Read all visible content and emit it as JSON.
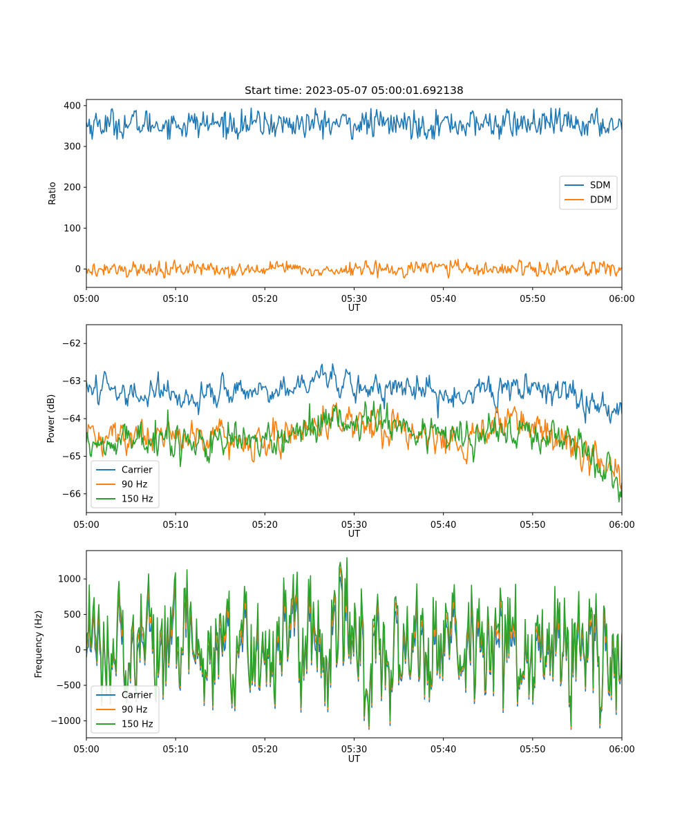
{
  "chart_data": [
    {
      "type": "line",
      "title": "Start time: 2023-05-07 05:00:01.692138",
      "xlabel": "UT",
      "ylabel": "Ratio",
      "xlim": [
        0,
        60
      ],
      "ylim": [
        -45,
        415
      ],
      "xticks": [
        0,
        10,
        20,
        30,
        40,
        50,
        60
      ],
      "xtick_labels": [
        "05:00",
        "05:10",
        "05:20",
        "05:30",
        "05:40",
        "05:50",
        "06:00"
      ],
      "yticks": [
        0,
        100,
        200,
        300,
        400
      ],
      "ytick_labels": [
        "0",
        "100",
        "200",
        "300",
        "400"
      ],
      "legend_position": "center-right",
      "series": [
        {
          "name": "SDM",
          "color": "#1f77b4",
          "mean": 355,
          "amplitude": 17,
          "min": 318,
          "max": 394
        },
        {
          "name": "DDM",
          "color": "#ff7f0e",
          "mean": 0,
          "amplitude": 9,
          "min": -22,
          "max": 27
        }
      ]
    },
    {
      "type": "line",
      "title": "",
      "xlabel": "UT",
      "ylabel": "Power (dB)",
      "xlim": [
        0,
        60
      ],
      "ylim": [
        -66.5,
        -61.5
      ],
      "xticks": [
        0,
        10,
        20,
        30,
        40,
        50,
        60
      ],
      "xtick_labels": [
        "05:00",
        "05:10",
        "05:20",
        "05:30",
        "05:40",
        "05:50",
        "06:00"
      ],
      "yticks": [
        -62,
        -63,
        -64,
        -65,
        -66
      ],
      "ytick_labels": [
        "−62",
        "−63",
        "−64",
        "−65",
        "−66"
      ],
      "legend_position": "lower-left",
      "series": [
        {
          "name": "Carrier",
          "color": "#1f77b4",
          "trend": [
            [
              0,
              -63.1
            ],
            [
              10,
              -63.4
            ],
            [
              20,
              -63.3
            ],
            [
              26,
              -62.9
            ],
            [
              30,
              -63.1
            ],
            [
              40,
              -63.3
            ],
            [
              48,
              -63.1
            ],
            [
              55,
              -63.4
            ],
            [
              60,
              -63.8
            ]
          ],
          "amplitude": 0.28
        },
        {
          "name": "90 Hz",
          "color": "#ff7f0e",
          "trend": [
            [
              0,
              -64.5
            ],
            [
              10,
              -64.4
            ],
            [
              20,
              -64.6
            ],
            [
              28,
              -64.0
            ],
            [
              35,
              -64.3
            ],
            [
              40,
              -64.6
            ],
            [
              48,
              -64.1
            ],
            [
              55,
              -64.6
            ],
            [
              60,
              -65.6
            ]
          ],
          "amplitude": 0.33
        },
        {
          "name": "150 Hz",
          "color": "#2ca02c",
          "trend": [
            [
              0,
              -64.6
            ],
            [
              10,
              -64.5
            ],
            [
              20,
              -64.7
            ],
            [
              28,
              -64.0
            ],
            [
              35,
              -64.2
            ],
            [
              40,
              -64.5
            ],
            [
              48,
              -64.3
            ],
            [
              55,
              -64.6
            ],
            [
              60,
              -65.8
            ]
          ],
          "amplitude": 0.33
        }
      ]
    },
    {
      "type": "line",
      "title": "",
      "xlabel": "UT",
      "ylabel": "Frequency (Hz)",
      "xlim": [
        0,
        60
      ],
      "ylim": [
        -1240,
        1400
      ],
      "xticks": [
        0,
        10,
        20,
        30,
        40,
        50,
        60
      ],
      "xtick_labels": [
        "05:00",
        "05:10",
        "05:20",
        "05:30",
        "05:40",
        "05:50",
        "06:00"
      ],
      "yticks": [
        1000,
        500,
        0,
        -500,
        -1000
      ],
      "ytick_labels": [
        "1000",
        "500",
        "0",
        "−500",
        "−1000"
      ],
      "legend_position": "lower-left",
      "series": [
        {
          "name": "Carrier",
          "color": "#1f77b4",
          "mean": 0,
          "amplitude": 380,
          "offset": -60,
          "min": -1120,
          "max": 1300
        },
        {
          "name": "90 Hz",
          "color": "#ff7f0e",
          "mean": 0,
          "amplitude": 380,
          "offset": 60,
          "min": -1120,
          "max": 1300
        },
        {
          "name": "150 Hz",
          "color": "#2ca02c",
          "mean": 0,
          "amplitude": 380,
          "offset": 150,
          "min": -1120,
          "max": 1300
        }
      ]
    }
  ]
}
